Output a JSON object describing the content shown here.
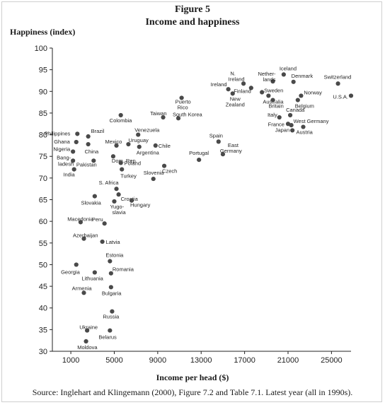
{
  "figure": {
    "title_line1": "Figure 5",
    "title_line2": "Income and happiness",
    "source": "Source: Inglehart and Klingemann (2000), Figure 7.2 and Table 7.1. Latest year (all in 1990s)."
  },
  "chart_data": {
    "type": "scatter",
    "title": "Income and happiness",
    "xlabel": "Income per head ($)",
    "ylabel": "Happiness (index)",
    "xlim": [
      -700,
      26800
    ],
    "ylim": [
      30,
      100
    ],
    "xticks": [
      1000,
      5000,
      9000,
      13000,
      17000,
      21000,
      25000
    ],
    "xtick_labels": [
      "1000",
      "5000",
      "9000",
      "13000",
      "17000",
      "21000",
      "25000"
    ],
    "yticks": [
      30,
      35,
      40,
      45,
      50,
      55,
      60,
      65,
      70,
      75,
      80,
      85,
      90,
      95,
      100
    ],
    "grid": false,
    "points": [
      {
        "label": "Philippines",
        "x": 1600,
        "y": 80.2,
        "la": "end",
        "dx": -10,
        "dy": 2
      },
      {
        "label": "Brazil",
        "x": 2600,
        "y": 79.6,
        "la": "start",
        "dx": 4,
        "dy": -5
      },
      {
        "label": "Ghana",
        "x": 1500,
        "y": 78.3,
        "la": "end",
        "dx": -9,
        "dy": 2
      },
      {
        "label": "China",
        "x": 2600,
        "y": 77.8,
        "la": "start",
        "dx": -5,
        "dy": 13
      },
      {
        "label": "Nigeria",
        "x": 1200,
        "y": 76.1,
        "la": "end",
        "dx": -4,
        "dy": -1
      },
      {
        "label": "Bang-",
        "x": 1200,
        "y": 74.0,
        "la": "end",
        "dx": -3,
        "dy": -2
      },
      {
        "label": "ladesh",
        "x": 1200,
        "y": 74.0,
        "la": "end",
        "dx": 1,
        "dy": 7,
        "nodot": true
      },
      {
        "label": "India",
        "x": 1300,
        "y": 72.0,
        "la": "end",
        "dx": 1,
        "dy": 10
      },
      {
        "label": "Pakistan",
        "x": 3100,
        "y": 74.0,
        "la": "middle",
        "dx": -10,
        "dy": 8
      },
      {
        "label": "Colombia",
        "x": 5600,
        "y": 84.5,
        "la": "start",
        "dx": -16,
        "dy": 10
      },
      {
        "label": "Venezuela",
        "x": 7200,
        "y": 80.0,
        "la": "start",
        "dx": -5,
        "dy": -4
      },
      {
        "label": "Mexico",
        "x": 5200,
        "y": 77.5,
        "la": "start",
        "dx": -16,
        "dy": -3
      },
      {
        "label": "Uruguay",
        "x": 6300,
        "y": 77.8,
        "la": "start",
        "dx": 0,
        "dy": -3
      },
      {
        "label": "Argentina",
        "x": 7300,
        "y": 77.2,
        "la": "start",
        "dx": -4,
        "dy": 11
      },
      {
        "label": "Chile",
        "x": 8800,
        "y": 77.5,
        "la": "start",
        "dx": 4,
        "dy": 3
      },
      {
        "label": "Dom. Rep.",
        "x": 4900,
        "y": 75.0,
        "la": "start",
        "dx": -2,
        "dy": 9
      },
      {
        "label": "Poland",
        "x": 5600,
        "y": 73.5,
        "la": "start",
        "dx": 5,
        "dy": 3
      },
      {
        "label": "Turkey",
        "x": 5700,
        "y": 72.0,
        "la": "start",
        "dx": -2,
        "dy": 12
      },
      {
        "label": "Czech",
        "x": 9600,
        "y": 72.8,
        "la": "start",
        "dx": -3,
        "dy": 10
      },
      {
        "label": "Taiwan",
        "x": 9500,
        "y": 84.0,
        "la": "end",
        "dx": 5,
        "dy": -3
      },
      {
        "label": "South Korea",
        "x": 10900,
        "y": 83.8,
        "la": "start",
        "dx": -8,
        "dy": -3
      },
      {
        "label": "Puerto",
        "x": 11200,
        "y": 88.5,
        "la": "start",
        "dx": -9,
        "dy": 8
      },
      {
        "label": "Rico",
        "x": 11200,
        "y": 88.5,
        "la": "start",
        "dx": -6,
        "dy": 16,
        "nodot": true
      },
      {
        "label": "Slovenia",
        "x": 8600,
        "y": 69.8,
        "la": "start",
        "dx": -14,
        "dy": -6
      },
      {
        "label": "S. Africa",
        "x": 5200,
        "y": 67.5,
        "la": "end",
        "dx": 3,
        "dy": -6
      },
      {
        "label": "Croatia",
        "x": 5400,
        "y": 66.2,
        "la": "start",
        "dx": 3,
        "dy": 9
      },
      {
        "label": "Slovakia",
        "x": 3200,
        "y": 65.8,
        "la": "end",
        "dx": 9,
        "dy": 12
      },
      {
        "label": "Yugo-",
        "x": 5000,
        "y": 64.6,
        "la": "start",
        "dx": -6,
        "dy": 10
      },
      {
        "label": "slavia",
        "x": 5000,
        "y": 64.6,
        "la": "start",
        "dx": -3,
        "dy": 18,
        "nodot": true
      },
      {
        "label": "Hungary",
        "x": 6600,
        "y": 64.8,
        "la": "start",
        "dx": -2,
        "dy": 9
      },
      {
        "label": "Macedonia",
        "x": 1900,
        "y": 59.8,
        "la": "end",
        "dx": 18,
        "dy": -2
      },
      {
        "label": "Peru",
        "x": 4100,
        "y": 59.5,
        "la": "end",
        "dx": -2,
        "dy": -3
      },
      {
        "label": "Azerbaijan",
        "x": 2200,
        "y": 56.0,
        "la": "end",
        "dx": 20,
        "dy": -2
      },
      {
        "label": "Latvia",
        "x": 3900,
        "y": 55.3,
        "la": "start",
        "dx": 5,
        "dy": 3
      },
      {
        "label": "Estonia",
        "x": 4600,
        "y": 50.8,
        "la": "start",
        "dx": -6,
        "dy": -6
      },
      {
        "label": "Georgia",
        "x": 1500,
        "y": 50.0,
        "la": "end",
        "dx": 5,
        "dy": 13
      },
      {
        "label": "Romania",
        "x": 4700,
        "y": 48.0,
        "la": "start",
        "dx": 2,
        "dy": -3
      },
      {
        "label": "Lithuania",
        "x": 3200,
        "y": 48.2,
        "la": "end",
        "dx": 12,
        "dy": 11
      },
      {
        "label": "Armenia",
        "x": 2200,
        "y": 43.5,
        "la": "end",
        "dx": 11,
        "dy": -4
      },
      {
        "label": "Bulgaria",
        "x": 4700,
        "y": 44.8,
        "la": "start",
        "dx": -13,
        "dy": 11
      },
      {
        "label": "Russia",
        "x": 4800,
        "y": 39.2,
        "la": "start",
        "dx": -13,
        "dy": 10
      },
      {
        "label": "Ukraine",
        "x": 2500,
        "y": 34.8,
        "la": "end",
        "dx": 15,
        "dy": -2
      },
      {
        "label": "Belarus",
        "x": 4600,
        "y": 34.8,
        "la": "start",
        "dx": -16,
        "dy": 12
      },
      {
        "label": "Moldova",
        "x": 2400,
        "y": 32.3,
        "la": "end",
        "dx": 16,
        "dy": 11
      },
      {
        "label": "Ireland",
        "x": 15500,
        "y": 90.5,
        "la": "end",
        "dx": -2,
        "dy": -4
      },
      {
        "label": "N.",
        "x": 16900,
        "y": 91.8,
        "la": "middle",
        "dx": -15,
        "dy": -12
      },
      {
        "label": "Ireland",
        "x": 16900,
        "y": 91.8,
        "la": "middle",
        "dx": -10,
        "dy": -4,
        "nodot": true
      },
      {
        "label": "New",
        "x": 15900,
        "y": 89.5,
        "la": "start",
        "dx": -4,
        "dy": 10
      },
      {
        "label": "Zealand",
        "x": 15900,
        "y": 89.5,
        "la": "start",
        "dx": -10,
        "dy": 18,
        "nodot": true
      },
      {
        "label": "Finland",
        "x": 17600,
        "y": 90.8,
        "la": "end",
        "dx": 0,
        "dy": 7
      },
      {
        "label": "Nether-",
        "x": 19600,
        "y": 92.3,
        "la": "end",
        "dx": 4,
        "dy": -8
      },
      {
        "label": "lands",
        "x": 19600,
        "y": 92.3,
        "la": "end",
        "dx": 4,
        "dy": 0,
        "nodot": true
      },
      {
        "label": "Sweden",
        "x": 18600,
        "y": 89.8,
        "la": "start",
        "dx": 3,
        "dy": 0
      },
      {
        "label": "Australia",
        "x": 19200,
        "y": 89.0,
        "la": "start",
        "dx": -8,
        "dy": 11
      },
      {
        "label": "Iceland",
        "x": 20600,
        "y": 93.9,
        "la": "start",
        "dx": -6,
        "dy": -6
      },
      {
        "label": "Denmark",
        "x": 21500,
        "y": 92.2,
        "la": "start",
        "dx": -3,
        "dy": -6
      },
      {
        "label": "Norway",
        "x": 22200,
        "y": 89.0,
        "la": "start",
        "dx": 4,
        "dy": -2
      },
      {
        "label": "Belgium",
        "x": 21900,
        "y": 88.0,
        "la": "start",
        "dx": -4,
        "dy": 11
      },
      {
        "label": "Britain",
        "x": 19600,
        "y": 88.0,
        "la": "start",
        "dx": -6,
        "dy": 11
      },
      {
        "label": "Canada",
        "x": 21200,
        "y": 84.5,
        "la": "start",
        "dx": -6,
        "dy": -5
      },
      {
        "label": "Italy",
        "x": 20200,
        "y": 84.0,
        "la": "end",
        "dx": -3,
        "dy": -1
      },
      {
        "label": "France",
        "x": 21000,
        "y": 82.5,
        "la": "end",
        "dx": -5,
        "dy": 3
      },
      {
        "label": "West Germany",
        "x": 21300,
        "y": 82.2,
        "la": "start",
        "dx": 3,
        "dy": -3
      },
      {
        "label": "Japan",
        "x": 21400,
        "y": 81.0,
        "la": "end",
        "dx": -4,
        "dy": 2
      },
      {
        "label": "Austria",
        "x": 22400,
        "y": 81.8,
        "la": "start",
        "dx": -10,
        "dy": 10
      },
      {
        "label": "Switzerland",
        "x": 25600,
        "y": 91.8,
        "la": "start",
        "dx": -20,
        "dy": -7
      },
      {
        "label": "U.S.A.",
        "x": 26800,
        "y": 89.0,
        "la": "end",
        "dx": -4,
        "dy": 4
      },
      {
        "label": "Spain",
        "x": 14600,
        "y": 78.4,
        "la": "start",
        "dx": -13,
        "dy": -6
      },
      {
        "label": "East",
        "x": 15000,
        "y": 75.5,
        "la": "start",
        "dx": 7,
        "dy": -10
      },
      {
        "label": "Germany",
        "x": 15000,
        "y": 75.5,
        "la": "start",
        "dx": -4,
        "dy": -2,
        "nodot": true
      },
      {
        "label": "Portugal",
        "x": 12800,
        "y": 74.2,
        "la": "start",
        "dx": -14,
        "dy": -7
      }
    ]
  }
}
